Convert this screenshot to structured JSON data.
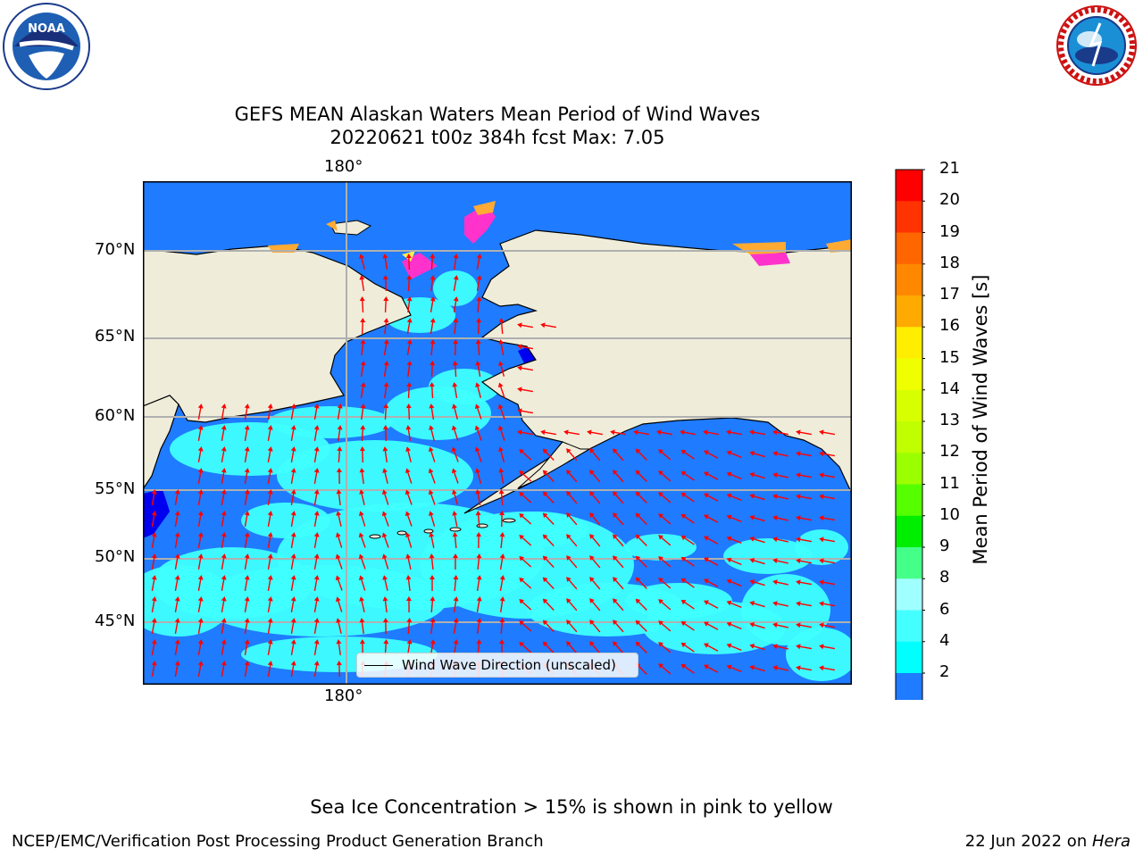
{
  "title": {
    "line1": "GEFS MEAN Alaskan Waters Mean Period of Wind Waves",
    "line2": "20220621 t00z 384h fcst   Max: 7.05"
  },
  "logos": {
    "left": {
      "icon": "noaa-logo",
      "text": "NOAA"
    },
    "right": {
      "icon": "national-weather-service-logo"
    }
  },
  "map": {
    "lon_label_top": "180°",
    "lon_label_bottom": "180°",
    "lat_labels": [
      "70°N",
      "65°N",
      "60°N",
      "55°N",
      "50°N",
      "45°N"
    ],
    "colors": {
      "land": "#efedda",
      "ocean_deep": "#1f7bff",
      "ocean_light": "#3fffff",
      "ocean_dark": "#0000f0",
      "ice_pink": "#ff33cc",
      "ice_orange": "#ffaa33",
      "ice_yellow": "#ffee55",
      "arrow": "#ff0000",
      "grid": "#b0b0b0"
    },
    "legend_label": "Wind Wave Direction (unscaled)"
  },
  "colorbar": {
    "label": "Mean Period of Wind Waves [s]",
    "ticks": [
      "21",
      "20",
      "19",
      "18",
      "17",
      "16",
      "15",
      "14",
      "13",
      "12",
      "11",
      "10",
      "9",
      "8",
      "6",
      "4",
      "2"
    ],
    "colors": [
      "#ff0000",
      "#ff3300",
      "#ff6600",
      "#ff8800",
      "#ffaa00",
      "#ffee00",
      "#f0ff00",
      "#d8ff00",
      "#c0ff00",
      "#9cff00",
      "#55ff00",
      "#00ee00",
      "#44ff88",
      "#a0ffff",
      "#44ffff",
      "#00ffff",
      "#1f7bff"
    ],
    "under_color": "#0000ee"
  },
  "footer": {
    "note": "Sea Ice Concentration > 15% is shown in pink to yellow",
    "left": "NCEP/EMC/Verification Post Processing Product Generation Branch",
    "right_prefix": "22 Jun 2022 on ",
    "right_machine": "Hera"
  }
}
